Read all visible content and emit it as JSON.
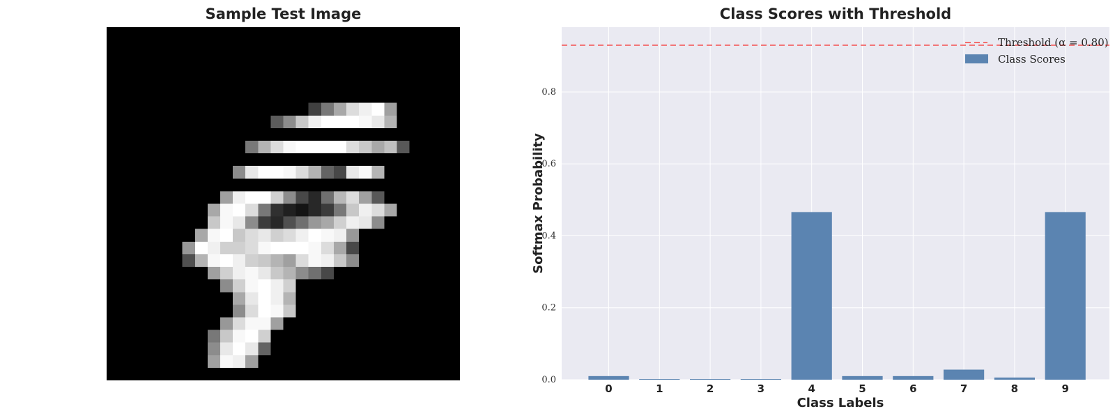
{
  "image_panel": {
    "title": "Sample Test Image"
  },
  "chart_data": {
    "type": "bar",
    "title": "Class Scores with Threshold",
    "xlabel": "Class Labels",
    "ylabel": "Softmax Probability",
    "categories": [
      "0",
      "1",
      "2",
      "3",
      "4",
      "5",
      "6",
      "7",
      "8",
      "9"
    ],
    "series": [
      {
        "name": "Class Scores",
        "values": [
          0.01,
          0.002,
          0.002,
          0.002,
          0.466,
          0.01,
          0.01,
          0.028,
          0.006,
          0.466
        ],
        "color": "#5b84b1"
      }
    ],
    "yticks": [
      "0.0",
      "0.2",
      "0.4",
      "0.6",
      "0.8"
    ],
    "ylim": [
      0,
      0.98
    ],
    "threshold": {
      "label": "Threshold (α = 0.80)",
      "value": 0.93,
      "color": "#f26d6d"
    },
    "legend_position": "top-right",
    "grid": true,
    "background": "#eaeaf2"
  }
}
